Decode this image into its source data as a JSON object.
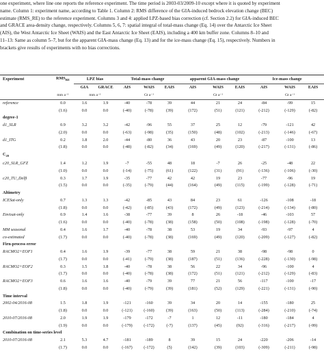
{
  "caption_lines": [
    "one experiment, where line one reports the reference experiment. The time period is 2003-03/2009-10 except where it is quoted by experiment",
    "name. Column 1: experiment name, according to Table 1. Column 2: RMS difference of the GIA-induced bedrock elevation change (BEC)",
    "estimate (RMS_RE) to the reference experiment. Columns 3 and 4: applied LPZ-based bias correction (cf. Section 2.2) for GIA-induced BEC",
    "and GRACE area-density change, respectively. Columns 5, 6, 7: spatial integral of total-mass change (Eq. 14) over the Antarctic Ice Sheet",
    "(AIS), the West Antarctic Ice Sheet (WAIS) and the East Antarctic Ice Sheet (EAIS), including a 400 km buffer zone. Columns 8–10 and",
    "11–13: Same as column 5–7, but for the apparent GIA-mass change (Eq. 13) and for the ice-mass change (Eq. 15), respectively. Numbers in",
    "brackets give results of experiments with no bias corrections."
  ],
  "header": {
    "experiment": "Experiment",
    "rms": "RMS",
    "rms_sub": "RE",
    "lpz": "LPZ bias",
    "total": "Total-mass change",
    "apparent": "apparent GIA-mass change",
    "ice": "Ice-mass change",
    "gia": "GIA",
    "grace": "GRACE",
    "ais": "AIS",
    "wais": "WAIS",
    "eais": "EAIS",
    "unit_rms": "mm a⁻¹",
    "unit_mm": "mm a⁻¹",
    "unit_gt": "Gt a⁻¹",
    "c20_base": "C",
    "c20_sub": "20"
  },
  "rows": [
    {
      "type": "data",
      "name": "reference",
      "italic": true,
      "v": [
        "0.0",
        "1.6",
        "1.9",
        "-40",
        "-78",
        "39",
        "44",
        "21",
        "24",
        "-84",
        "-99",
        "15"
      ]
    },
    {
      "type": "data",
      "name": "",
      "italic": false,
      "v": [
        "(1.6)",
        "0.0",
        "0.0",
        "(-40)",
        "(-78)",
        "(39)",
        "(172)",
        "(51)",
        "(121)",
        "(-212)",
        "(-129)",
        "(-82)"
      ]
    },
    {
      "type": "section",
      "name": "degree-1"
    },
    {
      "type": "data",
      "name": "d1_SLR",
      "italic": true,
      "v": [
        "0.9",
        "3.2",
        "3.2",
        "-42",
        "-96",
        "55",
        "37",
        "25",
        "12",
        "-79",
        "-121",
        "42"
      ]
    },
    {
      "type": "data",
      "name": "",
      "italic": false,
      "v": [
        "(2.0)",
        "0.0",
        "0.0",
        "(-63)",
        "(-98)",
        "(35)",
        "(150)",
        "(48)",
        "(102)",
        "(-213)",
        "(-146)",
        "(-67)"
      ]
    },
    {
      "type": "data",
      "name": "d1_ITG",
      "italic": true,
      "v": [
        "0.2",
        "1.8",
        "2.0",
        "-44",
        "-80",
        "36",
        "43",
        "20",
        "23",
        "-87",
        "-100",
        "13"
      ]
    },
    {
      "type": "data",
      "name": "",
      "italic": false,
      "v": [
        "(1.8)",
        "0.0",
        "0.0",
        "(-48)",
        "(-82)",
        "(34)",
        "(169)",
        "(49)",
        "(120)",
        "(-217)",
        "(-131)",
        "(-86)"
      ]
    },
    {
      "type": "c20",
      "name": ""
    },
    {
      "type": "data",
      "name": "c20_SLR_GFZ",
      "italic": true,
      "v": [
        "1.4",
        "1.2",
        "1.9",
        "-7",
        "-55",
        "48",
        "18",
        "-7",
        "26",
        "-25",
        "-48",
        "22"
      ]
    },
    {
      "type": "data",
      "name": "",
      "italic": false,
      "v": [
        "(1.0)",
        "0.0",
        "0.0",
        "(-14)",
        "(-75)",
        "(61)",
        "(122)",
        "(31)",
        "(91)",
        "(-136)",
        "(-106)",
        "(-30)"
      ]
    },
    {
      "type": "data",
      "name": "c20_TU_Delft",
      "italic": true,
      "v": [
        "0.3",
        "1.7",
        "1.9",
        "-35",
        "-77",
        "42",
        "42",
        "19",
        "23",
        "-77",
        "-96",
        "19"
      ]
    },
    {
      "type": "data",
      "name": "",
      "italic": false,
      "v": [
        "(1.5)",
        "0.0",
        "0.0",
        "(-35)",
        "(-79)",
        "(44)",
        "(164)",
        "(49)",
        "(115)",
        "(-199)",
        "(-128)",
        "(-71)"
      ]
    },
    {
      "type": "section",
      "name": "Altimetry"
    },
    {
      "type": "data",
      "name": "ICESat-only",
      "italic": true,
      "v": [
        "0.7",
        "1.3",
        "1.3",
        "-42",
        "-85",
        "43",
        "84",
        "23",
        "61",
        "-126",
        "-108",
        "-18"
      ]
    },
    {
      "type": "data",
      "name": "",
      "italic": false,
      "v": [
        "(1.8)",
        "0.0",
        "0.0",
        "(-42)",
        "(-85)",
        "(43)",
        "(172)",
        "(49)",
        "(123)",
        "(-214)",
        "(-134)",
        "(-80)"
      ]
    },
    {
      "type": "data",
      "name": "Envisat-only",
      "italic": true,
      "v": [
        "0.9",
        "1.4",
        "1.6",
        "-38",
        "-77",
        "39",
        "8",
        "26",
        "-18",
        "-46",
        "-103",
        "57"
      ]
    },
    {
      "type": "data",
      "name": "",
      "italic": false,
      "v": [
        "(1.6)",
        "0.0",
        "0.0",
        "(-40)",
        "(-78)",
        "(38)",
        "(158)",
        "(50)",
        "(108)",
        "(-198)",
        "(-128)",
        "(-70)"
      ]
    },
    {
      "type": "data",
      "name": "MM seasonal",
      "italic": true,
      "v": [
        "0.4",
        "1.6",
        "1.7",
        "-40",
        "-78",
        "38",
        "53",
        "19",
        "34",
        "-93",
        "-97",
        "4"
      ]
    },
    {
      "type": "data",
      "name": "co-estimated",
      "italic": true,
      "v": [
        "(1.7)",
        "0.0",
        "0.0",
        "(-40)",
        "(-78)",
        "(38)",
        "(169)",
        "(49)",
        "(120)",
        "(-209)",
        "(-127)",
        "(-82)"
      ]
    },
    {
      "type": "section",
      "name": "Firn-process error"
    },
    {
      "type": "data",
      "name": "RACMO2+EOF1",
      "italic": true,
      "v": [
        "0.4",
        "1.6",
        "1.9",
        "-39",
        "-77",
        "38",
        "59",
        "21",
        "38",
        "-98",
        "-98",
        "0"
      ]
    },
    {
      "type": "data",
      "name": "",
      "italic": false,
      "v": [
        "(1.7)",
        "0.0",
        "0.0",
        "(-41)",
        "(-79)",
        "(38)",
        "(187)",
        "(51)",
        "(136)",
        "(-228)",
        "(-130)",
        "(-98)"
      ]
    },
    {
      "type": "data",
      "name": "RACMO2+EOF2",
      "italic": true,
      "v": [
        "0.3",
        "1.5",
        "1.8",
        "-40",
        "-78",
        "38",
        "56",
        "22",
        "34",
        "-96",
        "-100",
        "4"
      ]
    },
    {
      "type": "data",
      "name": "",
      "italic": false,
      "v": [
        "(1.7)",
        "0.0",
        "0.0",
        "(-40)",
        "(-78)",
        "(38)",
        "(172)",
        "(51)",
        "(121)",
        "(-212)",
        "(-129)",
        "(-83)"
      ]
    },
    {
      "type": "data",
      "name": "RACMO2+EOF3",
      "italic": true,
      "v": [
        "0.6",
        "1.6",
        "1.6",
        "-40",
        "-79",
        "39",
        "77",
        "21",
        "56",
        "-117",
        "-100",
        "-17"
      ]
    },
    {
      "type": "data",
      "name": "",
      "italic": false,
      "v": [
        "(1.8)",
        "0.0",
        "0.0",
        "(-40)",
        "(-79)",
        "(39)",
        "(181)",
        "(52)",
        "(129)",
        "(-221)",
        "(-131)",
        "(-90)"
      ]
    },
    {
      "type": "section",
      "name": "Time interval"
    },
    {
      "type": "data",
      "name": "2002-04/2016-08",
      "italic": true,
      "v": [
        "1.5",
        "1.8",
        "1.9",
        "-121",
        "-160",
        "39",
        "34",
        "20",
        "14",
        "-155",
        "-180",
        "25"
      ]
    },
    {
      "type": "data",
      "name": "",
      "italic": false,
      "v": [
        "(1.8)",
        "0.0",
        "0.0",
        "(-121)",
        "(-160)",
        "(39)",
        "(163)",
        "(50)",
        "(113)",
        "(-284)",
        "(-210)",
        "(-74)"
      ]
    },
    {
      "type": "data",
      "name": "2010-07/2016-08",
      "italic": true,
      "v": [
        "2.0",
        "1.9",
        "1.9",
        "-179",
        "-172",
        "-7",
        "1",
        "12",
        "-11",
        "-180",
        "-184",
        "4"
      ]
    },
    {
      "type": "data",
      "name": "",
      "italic": false,
      "v": [
        "(1.9)",
        "0.0",
        "0.0",
        "(-179)",
        "(-172)",
        "(-7)",
        "(137)",
        "(45)",
        "(92)",
        "(-316)",
        "(-217)",
        "(-99)"
      ]
    },
    {
      "type": "section",
      "name": "Combination on time-series level"
    },
    {
      "type": "data",
      "name": "2010-07/2016-08",
      "italic": true,
      "v": [
        "2.1",
        "5.3",
        "4.7",
        "-181",
        "-189",
        "8",
        "39",
        "15",
        "24",
        "-220",
        "-206",
        "-14"
      ]
    },
    {
      "type": "data",
      "name": "",
      "italic": false,
      "v": [
        "(1.7)",
        "0.0",
        "0.0",
        "(-167)",
        "(-172)",
        "(5)",
        "(142)",
        "(39)",
        "(103)",
        "(-309)",
        "(-211)",
        "(-98)"
      ]
    }
  ]
}
